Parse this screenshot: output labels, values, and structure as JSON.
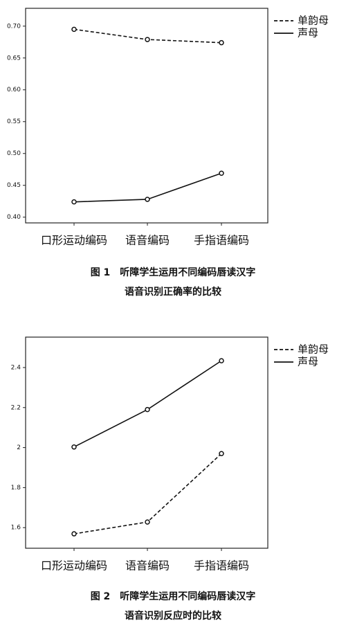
{
  "chart_data": [
    {
      "type": "line",
      "categories": [
        "口形运动编码",
        "语音编码",
        "手指语编码"
      ],
      "series": [
        {
          "name": "单韵母",
          "color": "#111111",
          "dashed": true,
          "values": [
            0.695,
            0.679,
            0.674
          ]
        },
        {
          "name": "声母",
          "color": "#111111",
          "dashed": false,
          "values": [
            0.424,
            0.428,
            0.469
          ]
        }
      ],
      "ylim": [
        0.391,
        0.728
      ],
      "yticks": [
        {
          "value": 0.4,
          "label": "0.40"
        },
        0.45,
        {
          "value": 0.5,
          "label": "0.50"
        },
        0.55,
        {
          "value": 0.6,
          "label": "0.60"
        },
        0.65,
        {
          "value": 0.7,
          "label": "0.70"
        }
      ],
      "caption": [
        "图 1　听障学生运用不同编码唇读汉字",
        "语音识别正确率的比较"
      ]
    },
    {
      "type": "line",
      "categories": [
        "口形运动编码",
        "语音编码",
        "手指语编码"
      ],
      "series": [
        {
          "name": "单韵母",
          "color": "#111111",
          "dashed": true,
          "values": [
            1.569,
            1.628,
            1.97
          ]
        },
        {
          "name": "声母",
          "color": "#111111",
          "dashed": false,
          "values": [
            2.003,
            2.19,
            2.434
          ]
        }
      ],
      "ylim": [
        1.497,
        2.552
      ],
      "yticks": [
        1.6,
        1.8,
        2.0,
        2.2,
        2.4
      ],
      "caption": [
        "图 2　听障学生运用不同编码唇读汉字",
        "语音识别反应时的比较"
      ]
    }
  ]
}
